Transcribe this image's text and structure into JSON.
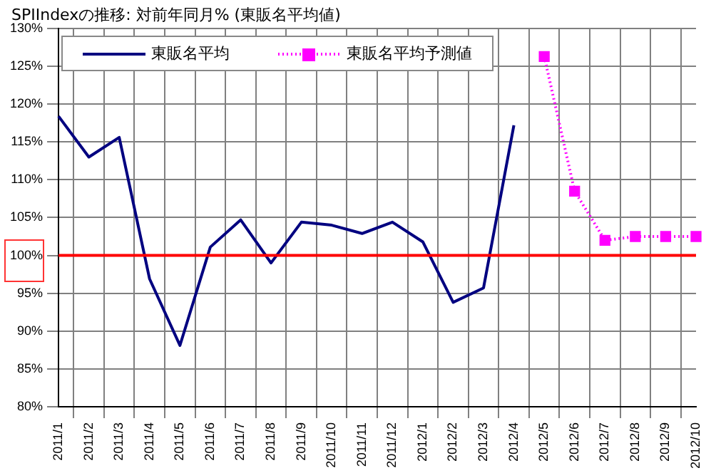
{
  "chart_data": {
    "type": "line",
    "title": "SPIIndexの推移: 対前年同月% (東販名平均値)",
    "categories": [
      "2011/1",
      "2011/2",
      "2011/3",
      "2011/4",
      "2011/5",
      "2011/6",
      "2011/7",
      "2011/8",
      "2011/9",
      "2011/10",
      "2011/11",
      "2011/12",
      "2012/1",
      "2012/2",
      "2012/3",
      "2012/4",
      "2012/5",
      "2012/6",
      "2012/7",
      "2012/8",
      "2012/9",
      "2012/10"
    ],
    "series": [
      {
        "name": "東販名平均",
        "color": "#000080",
        "line_style": "solid",
        "marker": "none",
        "values": [
          118.4,
          113.0,
          115.6,
          96.9,
          88.1,
          101.1,
          104.7,
          99.0,
          104.4,
          104.0,
          102.9,
          104.4,
          101.8,
          93.8,
          95.7,
          117.2,
          null,
          null,
          null,
          null,
          null,
          null
        ]
      },
      {
        "name": "東販名平均予測値",
        "color": "#ff00ff",
        "line_style": "dotted",
        "marker": "square",
        "values": [
          null,
          null,
          null,
          null,
          null,
          null,
          null,
          null,
          null,
          null,
          null,
          null,
          null,
          null,
          null,
          null,
          126.3,
          108.5,
          102.0,
          102.5,
          102.5,
          102.5
        ]
      }
    ],
    "ylim": [
      80,
      130
    ],
    "yticks": [
      {
        "value": 80,
        "label": "80%"
      },
      {
        "value": 85,
        "label": "85%"
      },
      {
        "value": 90,
        "label": "90%"
      },
      {
        "value": 95,
        "label": "95%"
      },
      {
        "value": 100,
        "label": "100%"
      },
      {
        "value": 105,
        "label": "105%"
      },
      {
        "value": 110,
        "label": "110%"
      },
      {
        "value": 115,
        "label": "115%"
      },
      {
        "value": 120,
        "label": "120%"
      },
      {
        "value": 125,
        "label": "125%"
      },
      {
        "value": 130,
        "label": "130%"
      }
    ],
    "ref_lines": [
      {
        "axis": "y",
        "value": 100,
        "color": "#ff0000"
      }
    ],
    "grid": true,
    "legend": "top left"
  }
}
